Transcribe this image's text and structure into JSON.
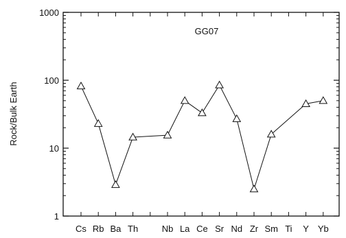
{
  "chart_data": {
    "type": "line",
    "title": "GG07",
    "ylabel": "Rock/Bulk Earth",
    "xlabel": "",
    "yscale": "log",
    "ylim": [
      1,
      1000
    ],
    "y_ticks": [
      {
        "value": 1,
        "label": "1"
      },
      {
        "value": 10,
        "label": "10"
      },
      {
        "value": 100,
        "label": "100"
      },
      {
        "value": 1000,
        "label": "1000"
      }
    ],
    "categories": [
      "Cs",
      "Rb",
      "Ba",
      "Th",
      "",
      "Nb",
      "La",
      "Ce",
      "Sr",
      "Nd",
      "Zr",
      "Sm",
      "Ti",
      "Y",
      "Yb"
    ],
    "series": [
      {
        "marker": "open-triangle",
        "color": "#111111",
        "values": [
          82,
          23,
          2.9,
          14.5,
          null,
          15.5,
          50,
          33,
          85,
          27,
          2.5,
          16,
          null,
          45,
          50
        ]
      }
    ],
    "grid": false,
    "legend": "none"
  }
}
